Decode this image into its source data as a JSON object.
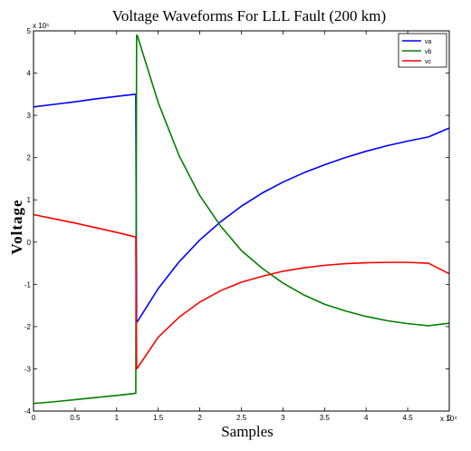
{
  "chart_data": {
    "type": "line",
    "title": "Voltage Waveforms For LLL Fault (200 km)",
    "xlabel": "Samples",
    "ylabel": "Voltage",
    "x_exponent": "x 10⁴",
    "y_exponent": "x 10⁵",
    "xlim": [
      0,
      5
    ],
    "ylim": [
      -4,
      5
    ],
    "xticks": [
      "0",
      "0.5",
      "1",
      "1.5",
      "2",
      "2.5",
      "3",
      "3.5",
      "4",
      "4.5",
      "5"
    ],
    "yticks": [
      "-4",
      "-3",
      "-2",
      "-1",
      "0",
      "1",
      "2",
      "3",
      "4",
      "5"
    ],
    "grid": false,
    "legend_position": "top-right",
    "x_unit_note": "x values in units of 10^4 samples; y values in units of 10^5",
    "series": [
      {
        "name": "va",
        "color": "#0000ff",
        "x": [
          0,
          0.25,
          0.5,
          0.75,
          1.0,
          1.23,
          1.24,
          1.25,
          1.5,
          1.75,
          2.0,
          2.25,
          2.5,
          2.75,
          3.0,
          3.25,
          3.5,
          3.75,
          4.0,
          4.25,
          4.5,
          4.75,
          5.0
        ],
        "y": [
          3.2,
          3.26,
          3.32,
          3.39,
          3.45,
          3.5,
          -1.9,
          -1.88,
          -1.1,
          -0.47,
          0.05,
          0.48,
          0.85,
          1.16,
          1.42,
          1.64,
          1.83,
          2.0,
          2.15,
          2.28,
          2.39,
          2.49,
          2.7
        ]
      },
      {
        "name": "vb",
        "color": "#008000",
        "x": [
          0,
          0.25,
          0.5,
          0.75,
          1.0,
          1.23,
          1.24,
          1.25,
          1.5,
          1.75,
          2.0,
          2.25,
          2.5,
          2.75,
          3.0,
          3.25,
          3.5,
          3.75,
          4.0,
          4.25,
          4.5,
          4.75,
          5.0
        ],
        "y": [
          -3.82,
          -3.78,
          -3.73,
          -3.68,
          -3.63,
          -3.58,
          4.9,
          4.88,
          3.3,
          2.05,
          1.1,
          0.38,
          -0.2,
          -0.62,
          -0.97,
          -1.25,
          -1.47,
          -1.63,
          -1.76,
          -1.86,
          -1.93,
          -1.98,
          -1.92
        ]
      },
      {
        "name": "vc",
        "color": "#ff0000",
        "x": [
          0,
          0.25,
          0.5,
          0.75,
          1.0,
          1.23,
          1.24,
          1.25,
          1.5,
          1.75,
          2.0,
          2.25,
          2.5,
          2.75,
          3.0,
          3.25,
          3.5,
          3.75,
          4.0,
          4.25,
          4.5,
          4.75,
          5.0
        ],
        "y": [
          0.65,
          0.55,
          0.45,
          0.34,
          0.23,
          0.12,
          -3.0,
          -2.98,
          -2.25,
          -1.78,
          -1.42,
          -1.15,
          -0.95,
          -0.81,
          -0.69,
          -0.61,
          -0.55,
          -0.51,
          -0.49,
          -0.48,
          -0.48,
          -0.5,
          -0.75
        ]
      }
    ]
  }
}
